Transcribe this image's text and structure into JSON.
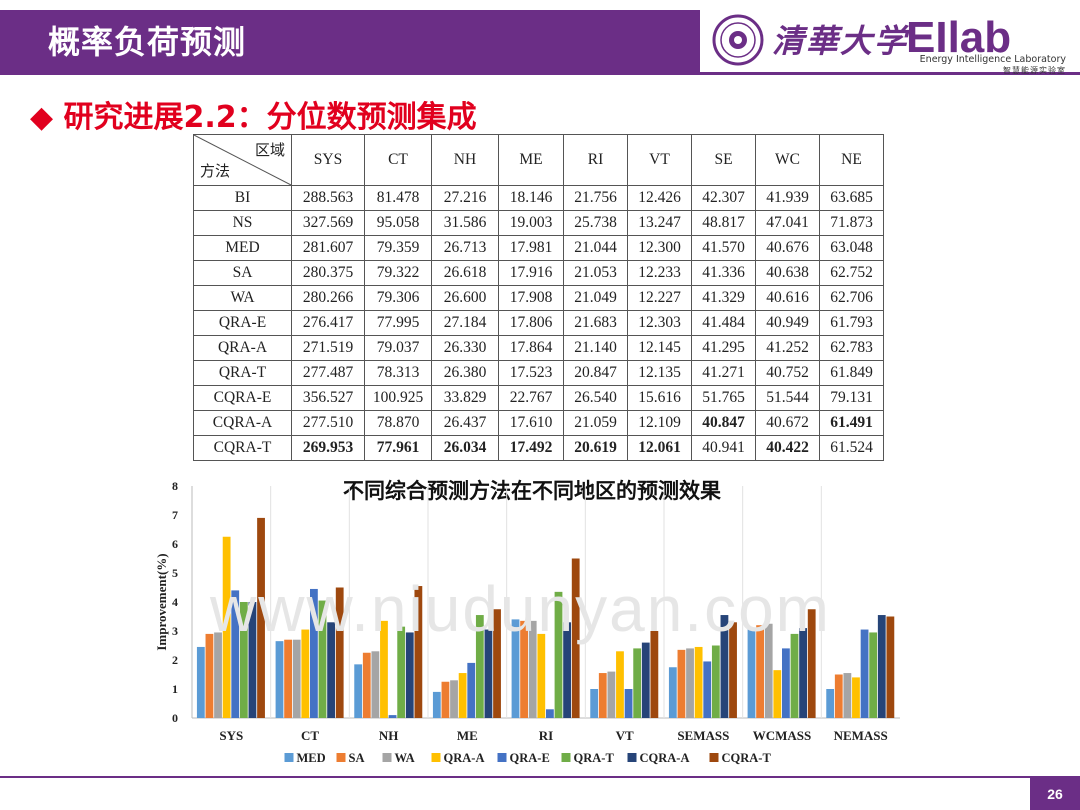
{
  "header": {
    "title": "概率负荷预测",
    "university": "清華大学",
    "lab_logo": "EIlab",
    "lab_en": "Energy Intelligence Laboratory",
    "lab_cn": "智慧能源实验室",
    "accent": "#6b2e86"
  },
  "section": {
    "bullet": "◆",
    "title": "研究进展2.2：分位数预测集成"
  },
  "table": {
    "corner_region": "区域",
    "corner_method": "方法",
    "columns": [
      "SYS",
      "CT",
      "NH",
      "ME",
      "RI",
      "VT",
      "SE",
      "WC",
      "NE"
    ],
    "rows": [
      {
        "method": "BI",
        "values": [
          "288.563",
          "81.478",
          "27.216",
          "18.146",
          "21.756",
          "12.426",
          "42.307",
          "41.939",
          "63.685"
        ],
        "bold": []
      },
      {
        "method": "NS",
        "values": [
          "327.569",
          "95.058",
          "31.586",
          "19.003",
          "25.738",
          "13.247",
          "48.817",
          "47.041",
          "71.873"
        ],
        "bold": []
      },
      {
        "method": "MED",
        "values": [
          "281.607",
          "79.359",
          "26.713",
          "17.981",
          "21.044",
          "12.300",
          "41.570",
          "40.676",
          "63.048"
        ],
        "bold": []
      },
      {
        "method": "SA",
        "values": [
          "280.375",
          "79.322",
          "26.618",
          "17.916",
          "21.053",
          "12.233",
          "41.336",
          "40.638",
          "62.752"
        ],
        "bold": []
      },
      {
        "method": "WA",
        "values": [
          "280.266",
          "79.306",
          "26.600",
          "17.908",
          "21.049",
          "12.227",
          "41.329",
          "40.616",
          "62.706"
        ],
        "bold": []
      },
      {
        "method": "QRA-E",
        "values": [
          "276.417",
          "77.995",
          "27.184",
          "17.806",
          "21.683",
          "12.303",
          "41.484",
          "40.949",
          "61.793"
        ],
        "bold": []
      },
      {
        "method": "QRA-A",
        "values": [
          "271.519",
          "79.037",
          "26.330",
          "17.864",
          "21.140",
          "12.145",
          "41.295",
          "41.252",
          "62.783"
        ],
        "bold": []
      },
      {
        "method": "QRA-T",
        "values": [
          "277.487",
          "78.313",
          "26.380",
          "17.523",
          "20.847",
          "12.135",
          "41.271",
          "40.752",
          "61.849"
        ],
        "bold": []
      },
      {
        "method": "CQRA-E",
        "values": [
          "356.527",
          "100.925",
          "33.829",
          "22.767",
          "26.540",
          "15.616",
          "51.765",
          "51.544",
          "79.131"
        ],
        "bold": []
      },
      {
        "method": "CQRA-A",
        "values": [
          "277.510",
          "78.870",
          "26.437",
          "17.610",
          "21.059",
          "12.109",
          "40.847",
          "40.672",
          "61.491"
        ],
        "bold": [
          6,
          8
        ]
      },
      {
        "method": "CQRA-T",
        "values": [
          "269.953",
          "77.961",
          "26.034",
          "17.492",
          "20.619",
          "12.061",
          "40.941",
          "40.422",
          "61.524"
        ],
        "bold": [
          0,
          1,
          2,
          3,
          4,
          5,
          7
        ]
      }
    ]
  },
  "chart_data": {
    "type": "bar",
    "title": "不同综合预测方法在不同地区的预测效果",
    "xlabel": "",
    "ylabel": "Improvement(%)",
    "ylim": [
      0,
      8
    ],
    "yticks": [
      0,
      1,
      2,
      3,
      4,
      5,
      6,
      7,
      8
    ],
    "grid": false,
    "legend_position": "bottom",
    "categories": [
      "SYS",
      "CT",
      "NH",
      "ME",
      "RI",
      "VT",
      "SEMASS",
      "WCMASS",
      "NEMASS"
    ],
    "series": [
      {
        "name": "MED",
        "color": "#5b9bd5",
        "values": [
          2.45,
          2.65,
          1.85,
          0.9,
          3.4,
          1.0,
          1.75,
          3.1,
          1.0
        ]
      },
      {
        "name": "SA",
        "color": "#ed7d31",
        "values": [
          2.9,
          2.7,
          2.25,
          1.25,
          3.35,
          1.55,
          2.35,
          3.2,
          1.5
        ]
      },
      {
        "name": "WA",
        "color": "#a5a5a5",
        "values": [
          2.95,
          2.7,
          2.3,
          1.3,
          3.35,
          1.6,
          2.4,
          3.25,
          1.55
        ]
      },
      {
        "name": "QRA-A",
        "color": "#ffc000",
        "values": [
          6.25,
          3.05,
          3.35,
          1.55,
          2.9,
          2.3,
          2.45,
          1.65,
          1.4
        ]
      },
      {
        "name": "QRA-E",
        "color": "#4472c4",
        "values": [
          4.4,
          4.45,
          0.1,
          1.9,
          0.3,
          1.0,
          1.95,
          2.4,
          3.05
        ]
      },
      {
        "name": "QRA-T",
        "color": "#70ad47",
        "values": [
          4.0,
          4.05,
          3.15,
          3.55,
          4.35,
          2.4,
          2.5,
          2.9,
          2.95
        ]
      },
      {
        "name": "CQRA-A",
        "color": "#264478",
        "values": [
          4.0,
          3.3,
          2.95,
          3.05,
          3.3,
          2.6,
          3.55,
          3.1,
          3.55
        ]
      },
      {
        "name": "CQRA-T",
        "color": "#9e480e",
        "values": [
          6.9,
          4.5,
          4.55,
          3.75,
          5.5,
          3.0,
          3.3,
          3.75,
          3.5
        ]
      }
    ]
  },
  "watermark": "www.niudunyan.com",
  "footer": {
    "page": "26"
  }
}
